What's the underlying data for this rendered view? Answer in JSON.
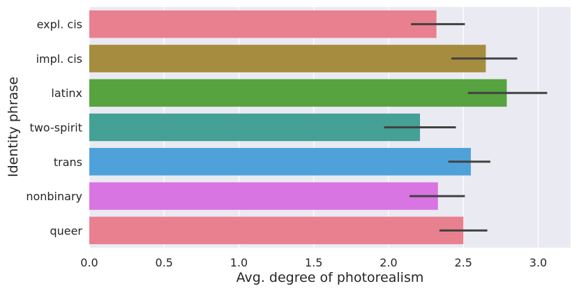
{
  "chart_data": {
    "type": "bar",
    "orientation": "horizontal",
    "title": "",
    "xlabel": "Avg. degree of photorealism",
    "ylabel": "Identity phrase",
    "categories": [
      "expl. cis",
      "impl. cis",
      "latinx",
      "two-spirit",
      "trans",
      "nonbinary",
      "queer"
    ],
    "values": [
      2.32,
      2.65,
      2.79,
      2.21,
      2.55,
      2.33,
      2.5
    ],
    "error_low": [
      2.15,
      2.42,
      2.53,
      1.97,
      2.4,
      2.14,
      2.34
    ],
    "error_high": [
      2.51,
      2.86,
      3.06,
      2.45,
      2.68,
      2.51,
      2.66
    ],
    "colors": [
      "#e8808f",
      "#a68c3e",
      "#56a33f",
      "#45a095",
      "#4ea2d9",
      "#d974e3",
      "#e8808f"
    ],
    "xlim": [
      0,
      3.2
    ],
    "xticks": [
      "0.0",
      "0.5",
      "1.0",
      "1.5",
      "2.0",
      "2.5",
      "3.0"
    ],
    "grid": true,
    "background": "#eaeaf2",
    "errorbar_color": "#424242"
  }
}
